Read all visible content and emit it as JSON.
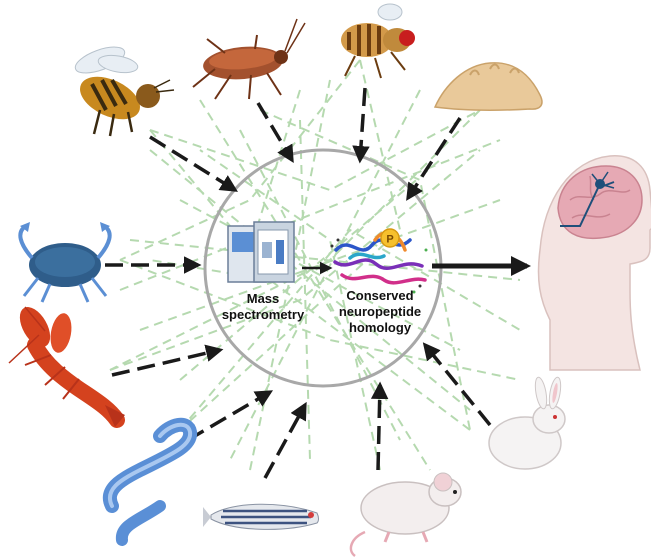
{
  "nodes": {
    "center": {
      "left_label": [
        "Mass",
        "spectrometry"
      ],
      "right_label": [
        "Conserved",
        "neuropeptide",
        "homology"
      ],
      "phospho_badge": "P"
    }
  },
  "organisms": [
    {
      "id": "honeybee",
      "icon": "bee-icon"
    },
    {
      "id": "cockroach",
      "icon": "cockroach-icon"
    },
    {
      "id": "fruit-fly",
      "icon": "fruit-fly-icon"
    },
    {
      "id": "sea-slug",
      "icon": "sea-slug-icon"
    },
    {
      "id": "blue-crab",
      "icon": "crab-icon"
    },
    {
      "id": "lobster",
      "icon": "lobster-icon"
    },
    {
      "id": "nematode",
      "icon": "worm-icon"
    },
    {
      "id": "zebrafish",
      "icon": "zebrafish-icon"
    },
    {
      "id": "mouse",
      "icon": "mouse-icon"
    },
    {
      "id": "rabbit",
      "icon": "rabbit-icon"
    }
  ],
  "output": {
    "icon": "human-brain-icon"
  },
  "colors": {
    "arrow": "#1a1a1a",
    "network_line": "#a9d3a2",
    "circle": "#a8a8a8",
    "crab": "#2f5d8a",
    "lobster": "#d4421e",
    "worm": "#5a8fd6",
    "bee": "#c8891f",
    "brain": "#e6a9b4"
  }
}
